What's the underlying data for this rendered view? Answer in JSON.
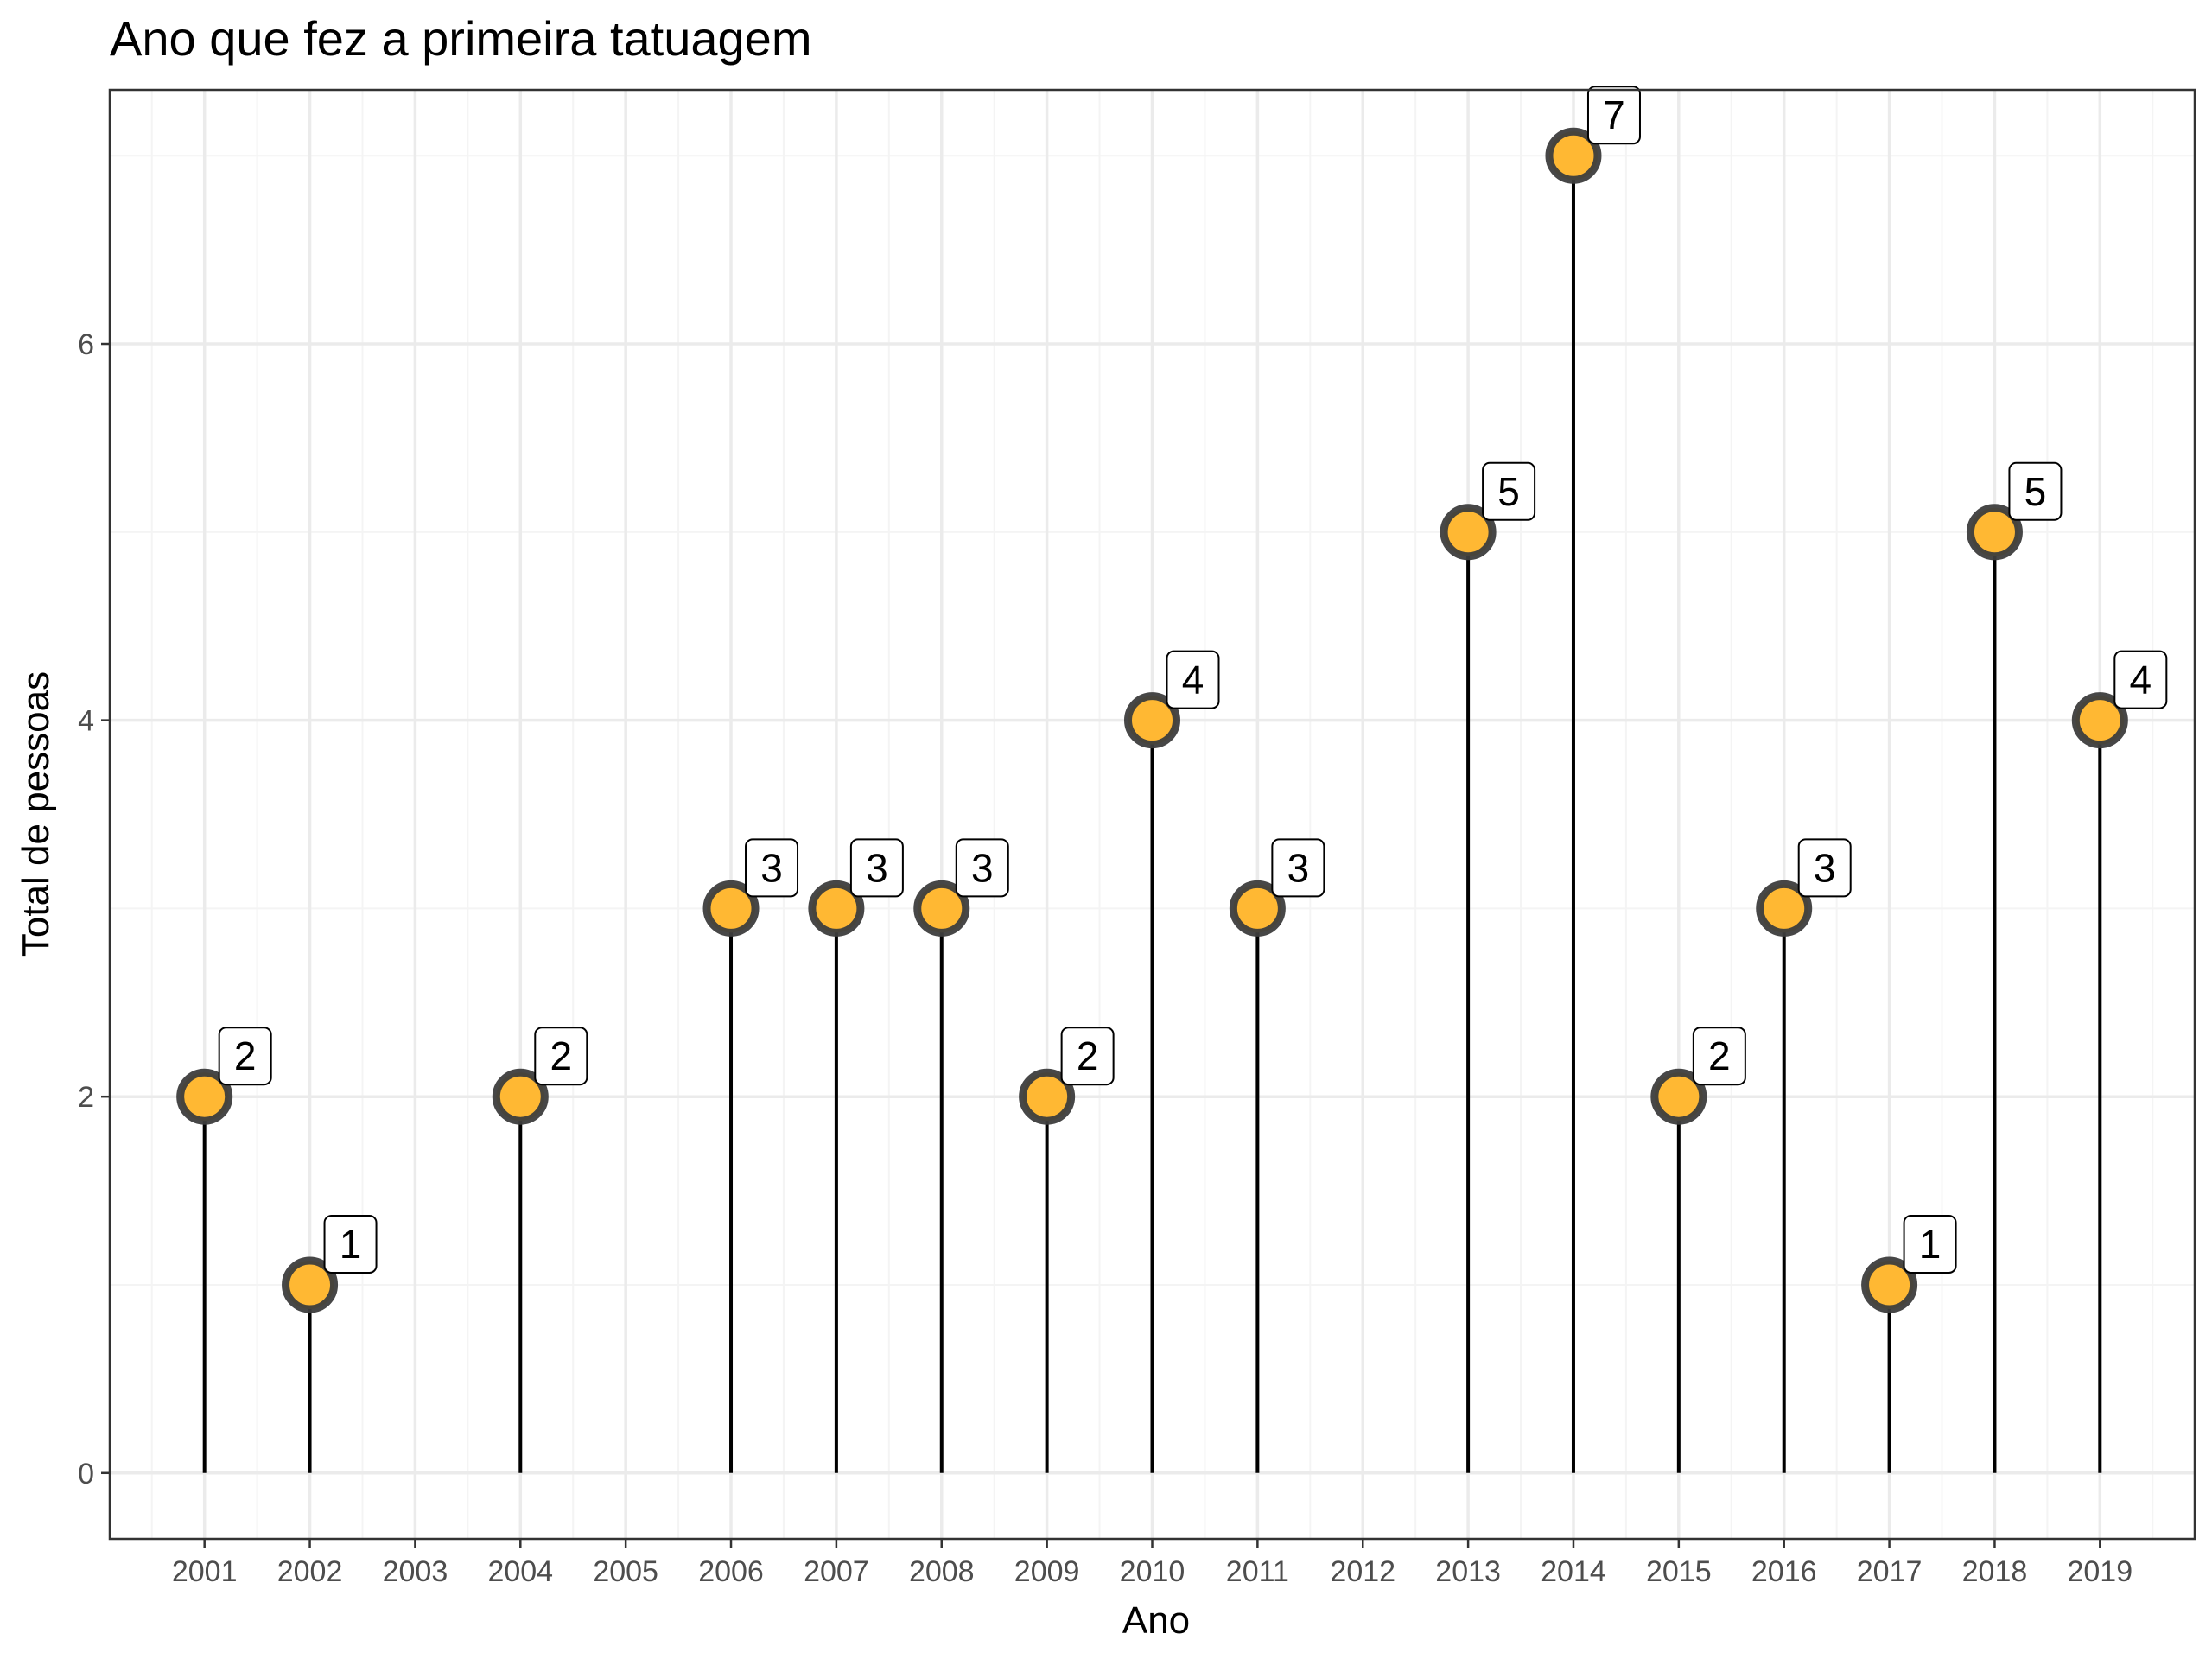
{
  "chart_data": {
    "type": "lollipop",
    "title": "Ano que fez a primeira tatuagem",
    "xlabel": "Ano",
    "ylabel": "Total de pessoas",
    "x": [
      2001,
      2002,
      2004,
      2006,
      2007,
      2008,
      2009,
      2010,
      2011,
      2013,
      2014,
      2015,
      2016,
      2017,
      2018,
      2019
    ],
    "values": [
      2,
      1,
      2,
      3,
      3,
      3,
      2,
      4,
      3,
      5,
      7,
      2,
      3,
      1,
      5,
      4
    ],
    "x_ticks": [
      "2001",
      "2002",
      "2003",
      "2004",
      "2005",
      "2006",
      "2007",
      "2008",
      "2009",
      "2010",
      "2011",
      "2012",
      "2013",
      "2014",
      "2015",
      "2016",
      "2017",
      "2018",
      "2019"
    ],
    "y_ticks": [
      "0",
      "2",
      "4",
      "6"
    ],
    "xlim": [
      2000.1,
      2019.9
    ],
    "ylim": [
      -0.35,
      7.35
    ],
    "grid": true,
    "legend": "none",
    "colors": {
      "point_fill": "#FFB833",
      "point_stroke": "#3d3d3d",
      "stem": "#000000",
      "grid_major": "#ebebeb",
      "grid_minor": "#f4f4f4",
      "panel_border": "#333333"
    }
  }
}
